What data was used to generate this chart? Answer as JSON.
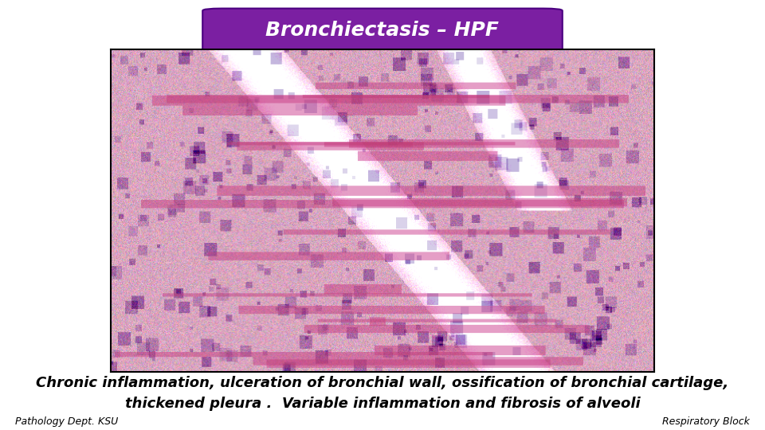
{
  "title": "Bronchiectasis – HPF",
  "title_bg_color": "#7B1FA2",
  "title_text_color": "#FFFFFF",
  "title_fontsize": 18,
  "caption_line1": "Chronic inflammation, ulceration of bronchial wall, ossification of bronchial cartilage,",
  "caption_line2": "thickened pleura .  Variable inflammation and fibrosis of alveoli",
  "caption_fontsize": 13,
  "footer_left": "Pathology Dept. KSU",
  "footer_right": "Respiratory Block",
  "footer_fontsize": 9,
  "bg_color": "#FFFFFF",
  "fig_width": 9.6,
  "fig_height": 5.4,
  "dpi": 100
}
